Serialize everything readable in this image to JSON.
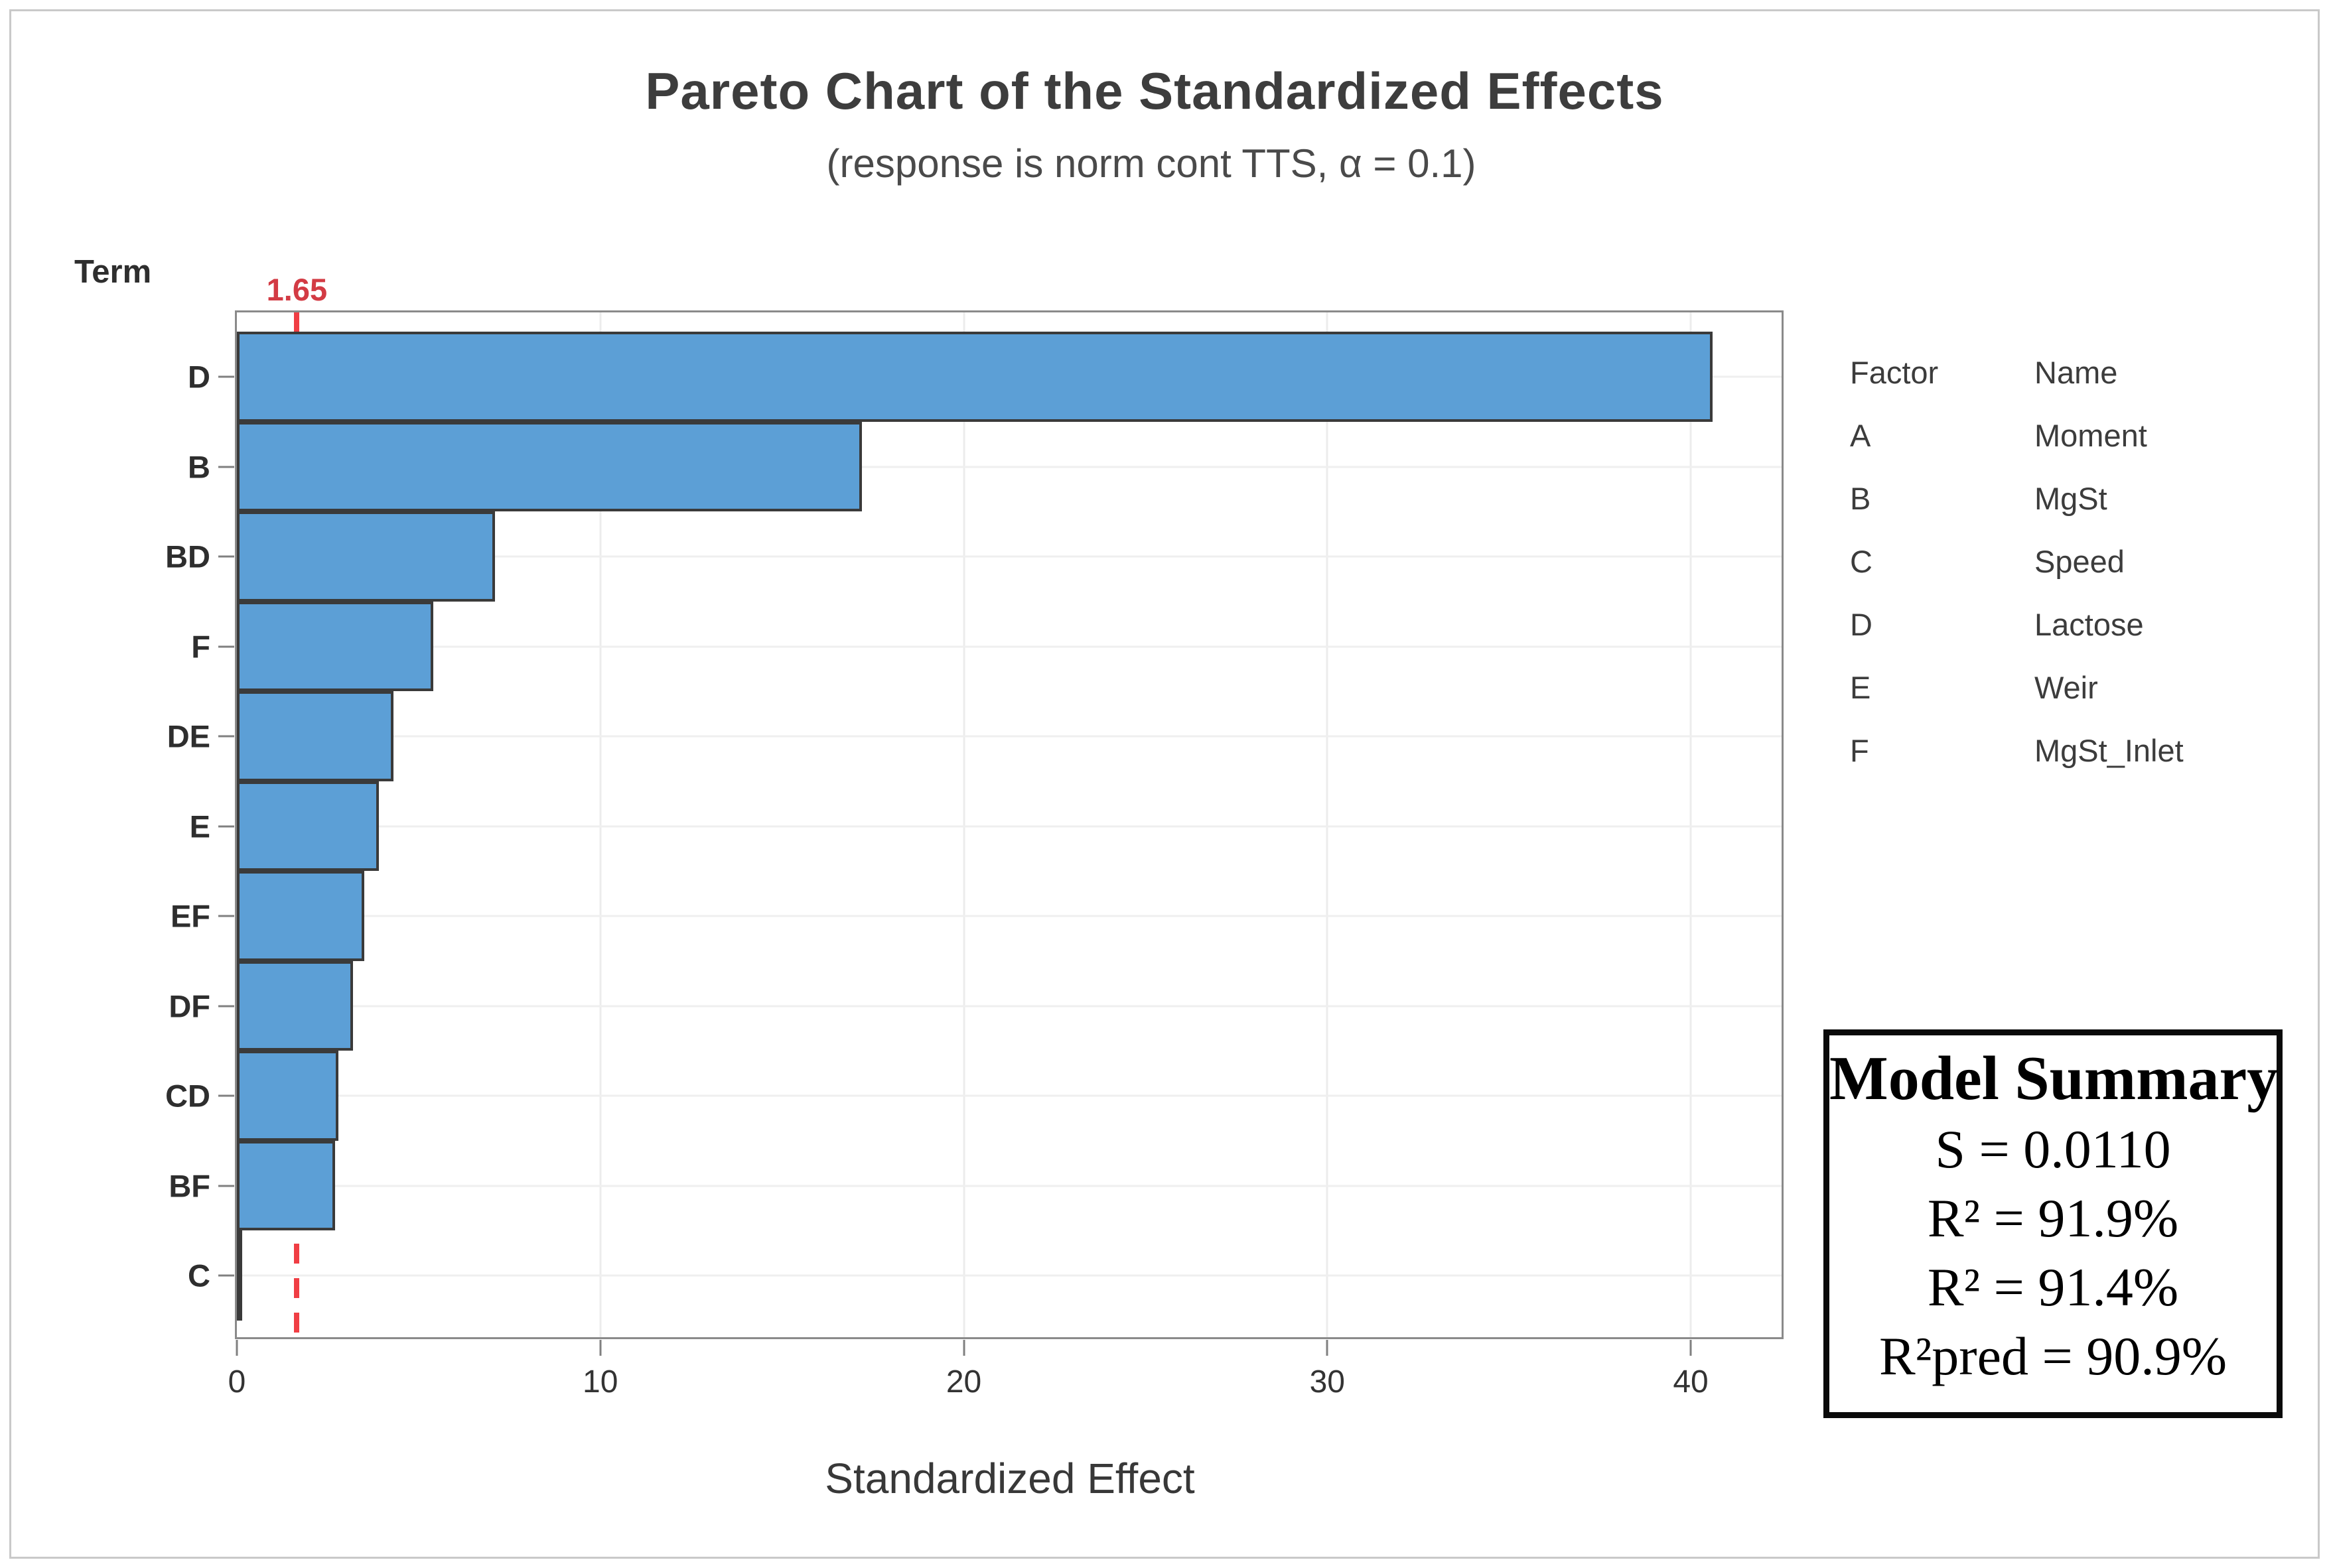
{
  "chart_data": {
    "type": "bar",
    "orientation": "horizontal",
    "title": "Pareto Chart of the Standardized Effects",
    "subtitle": "(response is norm cont TTS, α = 0.1)",
    "xlabel": "Standardized Effect",
    "ylabel": "Term",
    "xlim": [
      0,
      42.5
    ],
    "x_ticks": [
      0,
      10,
      20,
      30,
      40
    ],
    "grid": true,
    "legend_position": "right",
    "categories": [
      "D",
      "B",
      "BD",
      "F",
      "DE",
      "E",
      "EF",
      "DF",
      "CD",
      "BF",
      "C"
    ],
    "values": [
      40.6,
      17.2,
      7.1,
      5.4,
      4.3,
      3.9,
      3.5,
      3.2,
      2.8,
      2.7,
      0.05
    ],
    "reference_line": {
      "value": 1.65,
      "label": "1.65"
    },
    "colors": {
      "bar_fill": "#5c9fd6",
      "bar_border": "#3a3a3a",
      "reference_line": "#f03e44",
      "reference_label": "#d33b44",
      "frame": "#8a8a8a",
      "gridline": "#ececec"
    }
  },
  "legend": {
    "headers": [
      "Factor",
      "Name"
    ],
    "rows": [
      [
        "A",
        "Moment"
      ],
      [
        "B",
        "MgSt"
      ],
      [
        "C",
        "Speed"
      ],
      [
        "D",
        "Lactose"
      ],
      [
        "E",
        "Weir"
      ],
      [
        "F",
        "MgSt_Inlet"
      ]
    ]
  },
  "model_summary": {
    "title": "Model Summary",
    "lines": [
      "S = 0.0110",
      "R² = 91.9%",
      "R² = 91.4%",
      "R²pred = 90.9%"
    ]
  }
}
